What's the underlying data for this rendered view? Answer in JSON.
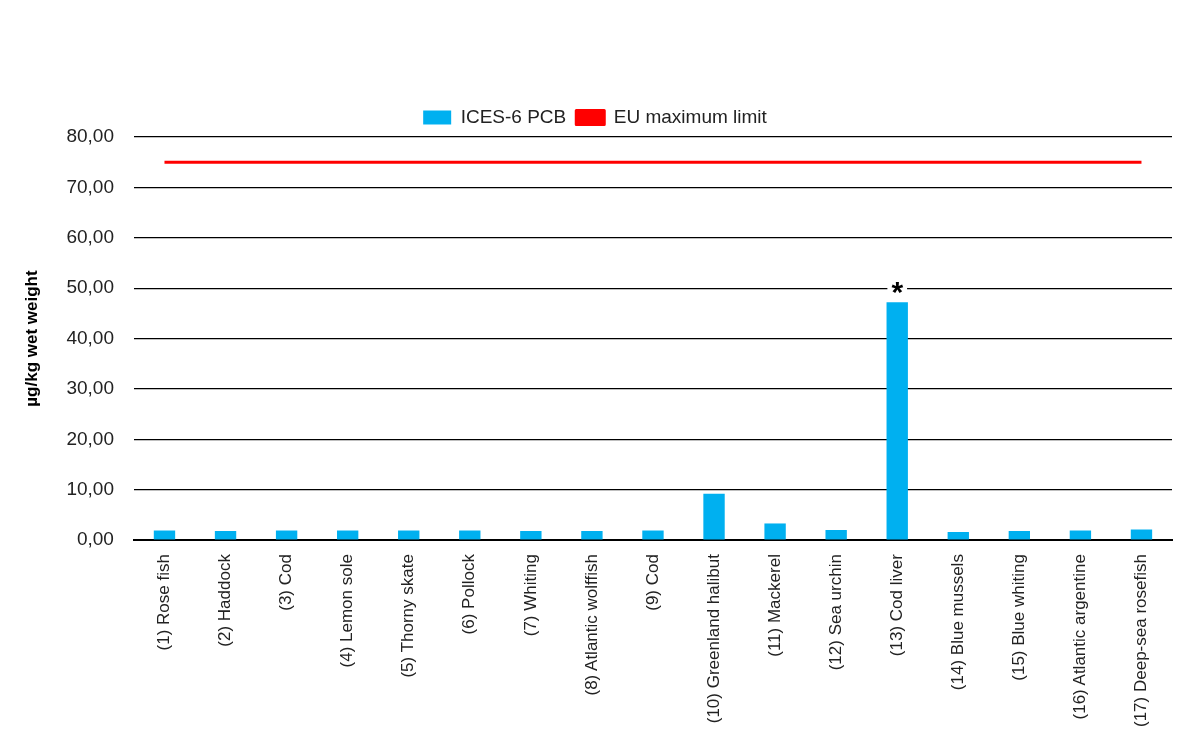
{
  "chart_data": {
    "type": "bar",
    "ylabel": "µg/kg wet weight",
    "categories": [
      "(1) Rose fish",
      "(2) Haddock",
      "(3) Cod",
      "(4) Lemon sole",
      "(5) Thorny skate",
      "(6) Pollock",
      "(7) Whiting",
      "(8) Atlantic wolffish",
      "(9) Cod",
      "(10) Greenland halibut",
      "(11) Mackerel",
      "(12) Sea urchin",
      "(13) Cod liver",
      "(14) Blue mussels",
      "(15) Blue whiting",
      "(16) Atlantic argentine",
      "(17) Deep-sea rosefish"
    ],
    "series": [
      {
        "name": "ICES-6 PCB",
        "color": "#00b0f0",
        "values": [
          1.9,
          1.8,
          1.9,
          1.9,
          1.9,
          1.9,
          1.8,
          1.8,
          1.9,
          9.2,
          3.3,
          2.0,
          47.2,
          1.6,
          1.8,
          1.9,
          2.1
        ]
      },
      {
        "name": "EU maximum limit",
        "type": "line",
        "color": "#ff0000",
        "values": [
          75,
          75,
          75,
          75,
          75,
          75,
          75,
          75,
          75,
          75,
          75,
          75,
          75,
          75,
          75,
          75,
          75
        ]
      }
    ],
    "ylim": [
      0,
      80
    ],
    "yticks": [
      {
        "value": 0,
        "label": "0,00"
      },
      {
        "value": 10,
        "label": "10,00"
      },
      {
        "value": 20,
        "label": "20,00"
      },
      {
        "value": 30,
        "label": "30,00"
      },
      {
        "value": 40,
        "label": "40,00"
      },
      {
        "value": 50,
        "label": "50,00"
      },
      {
        "value": 60,
        "label": "60,00"
      },
      {
        "value": 70,
        "label": "70,00"
      },
      {
        "value": 80,
        "label": "80,00"
      }
    ],
    "grid": "y",
    "legend": "top",
    "marker": "none",
    "line_style": "solid",
    "annotations": [
      {
        "text": "*",
        "x": "(13) Cod liver",
        "y": 47.2
      }
    ]
  }
}
